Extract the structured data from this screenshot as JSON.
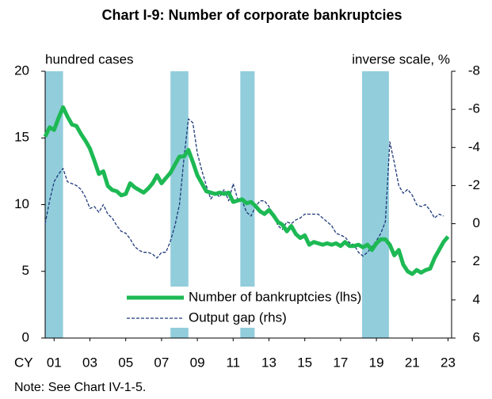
{
  "chart_data": {
    "type": "line",
    "title": "Chart I-9: Number of corporate bankruptcies",
    "y_label": "hundred cases",
    "y2_label": "inverse scale, %",
    "x_prefix": "CY",
    "note": "Note: See Chart IV-1-5.",
    "x": [
      2001.0,
      2001.25,
      2001.5,
      2001.75,
      2002.0,
      2002.25,
      2002.5,
      2002.75,
      2003.0,
      2003.25,
      2003.5,
      2003.75,
      2004.0,
      2004.25,
      2004.5,
      2004.75,
      2005.0,
      2005.25,
      2005.5,
      2005.75,
      2006.0,
      2006.25,
      2006.5,
      2006.75,
      2007.0,
      2007.25,
      2007.5,
      2007.75,
      2008.0,
      2008.25,
      2008.5,
      2008.75,
      2009.0,
      2009.25,
      2009.5,
      2009.75,
      2010.0,
      2010.25,
      2010.5,
      2010.75,
      2011.0,
      2011.25,
      2011.5,
      2011.75,
      2012.0,
      2012.25,
      2012.5,
      2012.75,
      2013.0,
      2013.25,
      2013.5,
      2013.75,
      2014.0,
      2014.25,
      2014.5,
      2014.75,
      2015.0,
      2015.25,
      2015.5,
      2015.75,
      2016.0,
      2016.25,
      2016.5,
      2016.75,
      2017.0,
      2017.25,
      2017.5,
      2017.75,
      2018.0,
      2018.25,
      2018.5,
      2018.75,
      2019.0,
      2019.25,
      2019.5,
      2019.75,
      2020.0,
      2020.25,
      2020.5,
      2020.75,
      2021.0,
      2021.25,
      2021.5,
      2021.75,
      2022.0,
      2022.25,
      2022.5,
      2022.75,
      2023.0,
      2023.25,
      2023.5
    ],
    "series": [
      {
        "name": "Number of bankruptcies (lhs)",
        "color": "#1db954",
        "width": 5,
        "dashed": false,
        "values": [
          15.1,
          15.8,
          15.6,
          16.5,
          17.3,
          16.6,
          16.0,
          15.9,
          15.3,
          14.8,
          14.2,
          13.3,
          12.3,
          12.5,
          11.4,
          11.1,
          11.0,
          10.7,
          10.8,
          11.6,
          11.3,
          11.1,
          10.9,
          11.2,
          11.6,
          12.2,
          11.6,
          12.0,
          12.4,
          13.0,
          13.6,
          13.6,
          14.1,
          13.2,
          12.2,
          11.6,
          11.0,
          10.9,
          10.8,
          10.9,
          10.8,
          10.9,
          10.2,
          10.3,
          10.4,
          10.1,
          10.2,
          9.9,
          9.5,
          9.3,
          9.6,
          9.2,
          8.7,
          8.5,
          8.0,
          8.4,
          7.8,
          7.5,
          7.7,
          7.0,
          7.2,
          7.1,
          7.0,
          7.1,
          7.0,
          7.1,
          6.9,
          7.2,
          6.9,
          6.9,
          7.0,
          6.8,
          7.0,
          6.6,
          7.1,
          7.4,
          7.4,
          7.0,
          6.2,
          6.6,
          5.5,
          5.0,
          4.8,
          5.1,
          4.9,
          5.1,
          5.2,
          6.0,
          6.6,
          7.2,
          7.6
        ]
      },
      {
        "name": "Output gap (rhs)",
        "color": "#1f3a78",
        "width": 1.3,
        "dashed": true,
        "axis": "y2",
        "values": [
          0.0,
          -1.2,
          -2.2,
          -2.6,
          -2.9,
          -2.2,
          -2.1,
          -2.0,
          -1.8,
          -1.4,
          -0.8,
          -0.9,
          -0.6,
          -1.0,
          -0.5,
          -0.3,
          0.1,
          0.4,
          0.5,
          0.8,
          1.2,
          1.4,
          1.5,
          1.5,
          1.6,
          1.8,
          1.5,
          1.5,
          0.9,
          0.1,
          -1.0,
          -3.4,
          -5.5,
          -5.3,
          -3.7,
          -2.8,
          -2.0,
          -1.3,
          -1.6,
          -1.4,
          -1.8,
          -1.2,
          -2.1,
          -1.3,
          -1.2,
          -0.6,
          -0.4,
          -0.9,
          -1.2,
          -1.2,
          -0.9,
          -0.5,
          0.1,
          0.3,
          -0.1,
          0.0,
          -0.2,
          -0.3,
          -0.5,
          -0.5,
          -0.5,
          -0.5,
          -0.3,
          -0.1,
          0.1,
          0.5,
          0.6,
          0.7,
          1.0,
          1.1,
          1.5,
          1.7,
          1.5,
          1.2,
          0.9,
          0.5,
          -0.1,
          -4.3,
          -3.2,
          -2.0,
          -1.6,
          -1.8,
          -1.5,
          -1.0,
          -0.9,
          -1.0,
          -0.7,
          -0.3,
          -0.5,
          -0.4,
          null
        ]
      }
    ],
    "shaded_periods": [
      [
        2001.0,
        2002.0
      ],
      [
        2008.0,
        2009.0
      ],
      [
        2011.9,
        2012.7
      ],
      [
        2018.7,
        2020.2
      ]
    ],
    "shade_color": "#92cddc",
    "xlim": [
      2001.0,
      2023.7
    ],
    "xticks": [
      {
        "value": 2001.5,
        "label": "01"
      },
      {
        "value": 2003.5,
        "label": "03"
      },
      {
        "value": 2005.5,
        "label": "05"
      },
      {
        "value": 2007.5,
        "label": "07"
      },
      {
        "value": 2009.5,
        "label": "09"
      },
      {
        "value": 2011.5,
        "label": "11"
      },
      {
        "value": 2013.5,
        "label": "13"
      },
      {
        "value": 2015.5,
        "label": "15"
      },
      {
        "value": 2017.5,
        "label": "17"
      },
      {
        "value": 2019.5,
        "label": "19"
      },
      {
        "value": 2021.5,
        "label": "21"
      },
      {
        "value": 2023.5,
        "label": "23"
      }
    ],
    "ylim": [
      0,
      20
    ],
    "yticks": [
      0,
      5,
      10,
      15,
      20
    ],
    "y2lim": [
      -8,
      6
    ],
    "y2_inverted": true,
    "y2ticks": [
      -8,
      -6,
      -4,
      -2,
      0,
      2,
      4,
      6
    ],
    "legend": "bottom-center"
  }
}
